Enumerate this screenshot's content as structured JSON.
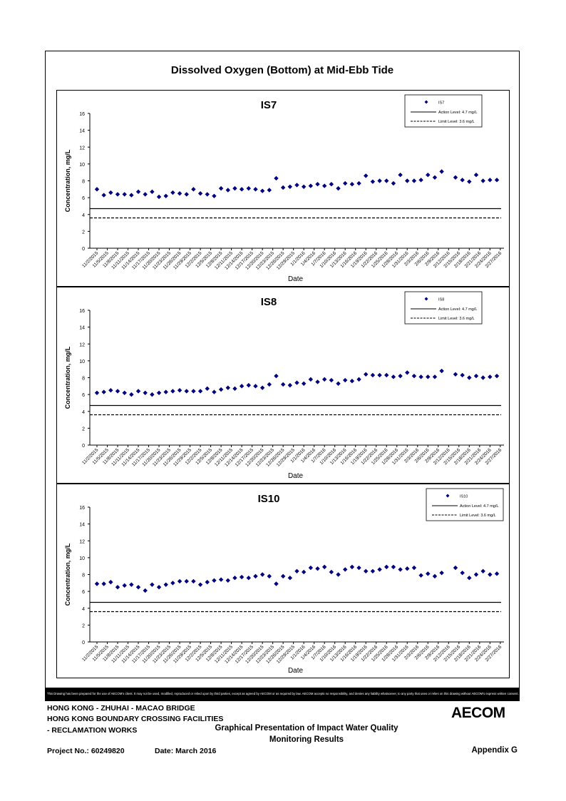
{
  "page_title": "Dissolved Oxygen (Bottom) at Mid-Ebb Tide",
  "disclaimer": "This Drawing has been prepared for the use of AECOM's client. It may not be used, modified, reproduced or relied upon by third parties, except as agreed by AECOM or as required by law. AECOM accepts no responsibility, and denies any liability whatsoever, to any party that uses or relies on this drawing without AECOM's express written consent.",
  "footer": {
    "line1": "HONG KONG - ZHUHAI - MACAO BRIDGE",
    "line2": "HONG KONG BOUNDARY CROSSING FACILITIES",
    "line3": "- RECLAMATION WORKS",
    "graph_title_1": "Graphical Presentation of Impact Water Quality",
    "graph_title_2": "Monitoring Results",
    "project": "Project No.: 60249820",
    "date": "Date: March 2016",
    "appendix": "Appendix G",
    "logo": "AECOM"
  },
  "colors": {
    "marker": "#000080",
    "line": "#000000"
  },
  "chart_data": [
    {
      "type": "scatter",
      "title": "IS7",
      "xlabel": "Date",
      "ylabel": "Concentration, mg/L",
      "ylim": [
        0,
        16
      ],
      "yticks": [
        0,
        2,
        4,
        6,
        8,
        10,
        12,
        14,
        16
      ],
      "xticks": [
        "11/2/2015",
        "11/5/2015",
        "11/8/2015",
        "11/11/2015",
        "11/14/2015",
        "11/17/2015",
        "11/20/2015",
        "11/23/2015",
        "11/26/2015",
        "11/29/2015",
        "12/2/2015",
        "12/5/2015",
        "12/8/2015",
        "12/11/2015",
        "12/14/2015",
        "12/17/2015",
        "12/20/2015",
        "12/23/2015",
        "12/26/2015",
        "12/29/2015",
        "1/1/2016",
        "1/4/2016",
        "1/7/2016",
        "1/10/2016",
        "1/13/2016",
        "1/16/2016",
        "1/19/2016",
        "1/22/2016",
        "1/25/2016",
        "1/28/2016",
        "1/31/2016",
        "2/3/2016",
        "2/6/2016",
        "2/9/2016",
        "2/12/2016",
        "2/15/2016",
        "2/18/2016",
        "2/21/2016",
        "2/24/2016",
        "2/27/2016"
      ],
      "legend": {
        "position": "top-right",
        "series": "IS7",
        "action": "Action Level: 4.7 mg/L",
        "limit": "Limit Level: 3.6 mg/L"
      },
      "action_level": 4.7,
      "limit_level": 3.6,
      "series": [
        {
          "name": "IS7",
          "x": [
            0,
            1,
            2,
            3,
            4,
            5,
            6,
            7,
            8,
            9,
            10,
            11,
            12,
            13,
            14,
            15,
            16,
            17,
            18,
            19,
            20,
            21,
            22,
            23,
            24,
            25,
            26,
            27,
            28,
            29,
            30,
            31,
            32,
            33,
            34,
            35,
            36,
            37,
            38,
            39,
            40,
            41,
            42,
            43,
            44,
            45,
            46,
            47,
            48,
            49,
            50,
            52,
            53,
            54,
            55,
            56,
            57,
            58
          ],
          "y": [
            7.0,
            6.3,
            6.6,
            6.4,
            6.4,
            6.3,
            6.7,
            6.4,
            6.7,
            6.1,
            6.2,
            6.6,
            6.5,
            6.4,
            7.0,
            6.5,
            6.4,
            6.2,
            7.1,
            6.9,
            7.1,
            7.0,
            7.1,
            7.0,
            6.8,
            6.9,
            8.3,
            7.2,
            7.3,
            7.5,
            7.3,
            7.4,
            7.6,
            7.4,
            7.6,
            7.1,
            7.7,
            7.6,
            7.7,
            8.6,
            7.9,
            8.0,
            8.0,
            7.7,
            8.7,
            8.0,
            8.0,
            8.1,
            8.7,
            8.4,
            9.1,
            8.4,
            8.1,
            7.9,
            8.7,
            8.0,
            8.1,
            8.1
          ]
        }
      ]
    },
    {
      "type": "scatter",
      "title": "IS8",
      "xlabel": "Date",
      "ylabel": "Concentration, mg/L",
      "ylim": [
        0,
        16
      ],
      "yticks": [
        0,
        2,
        4,
        6,
        8,
        10,
        12,
        14,
        16
      ],
      "xticks": [
        "11/2/2015",
        "11/5/2015",
        "11/8/2015",
        "11/11/2015",
        "11/14/2015",
        "11/17/2015",
        "11/20/2015",
        "11/23/2015",
        "11/26/2015",
        "11/29/2015",
        "12/2/2015",
        "12/5/2015",
        "12/8/2015",
        "12/11/2015",
        "12/14/2015",
        "12/17/2015",
        "12/20/2015",
        "12/23/2015",
        "12/26/2015",
        "12/29/2015",
        "1/1/2016",
        "1/4/2016",
        "1/7/2016",
        "1/10/2016",
        "1/13/2016",
        "1/16/2016",
        "1/19/2016",
        "1/22/2016",
        "1/25/2016",
        "1/28/2016",
        "1/31/2016",
        "2/3/2016",
        "2/6/2016",
        "2/9/2016",
        "2/12/2016",
        "2/15/2016",
        "2/18/2016",
        "2/21/2016",
        "2/24/2016",
        "2/27/2016"
      ],
      "legend": {
        "position": "top-right",
        "series": "IS8",
        "action": "Action Level: 4.7 mg/L",
        "limit": "Limit Level: 3.6 mg/L"
      },
      "action_level": 4.7,
      "limit_level": 3.6,
      "series": [
        {
          "name": "IS8",
          "x": [
            0,
            1,
            2,
            3,
            4,
            5,
            6,
            7,
            8,
            9,
            10,
            11,
            12,
            13,
            14,
            15,
            16,
            17,
            18,
            19,
            20,
            21,
            22,
            23,
            24,
            25,
            26,
            27,
            28,
            29,
            30,
            31,
            32,
            33,
            34,
            35,
            36,
            37,
            38,
            39,
            40,
            41,
            42,
            43,
            44,
            45,
            46,
            47,
            48,
            49,
            50,
            52,
            53,
            54,
            55,
            56,
            57,
            58
          ],
          "y": [
            6.2,
            6.3,
            6.5,
            6.4,
            6.2,
            6.0,
            6.4,
            6.2,
            6.0,
            6.2,
            6.3,
            6.4,
            6.5,
            6.4,
            6.4,
            6.4,
            6.7,
            6.3,
            6.6,
            6.8,
            6.7,
            7.0,
            7.1,
            7.0,
            6.8,
            7.2,
            8.2,
            7.2,
            7.1,
            7.4,
            7.3,
            7.8,
            7.5,
            7.8,
            7.7,
            7.3,
            7.7,
            7.6,
            7.8,
            8.4,
            8.3,
            8.3,
            8.3,
            8.1,
            8.2,
            8.6,
            8.2,
            8.1,
            8.1,
            8.1,
            8.8,
            8.4,
            8.3,
            8.0,
            8.2,
            8.0,
            8.1,
            8.2
          ]
        }
      ]
    },
    {
      "type": "scatter",
      "title": "IS10",
      "xlabel": "Date",
      "ylabel": "Concentration, mg/L",
      "ylim": [
        0,
        16
      ],
      "yticks": [
        0,
        2,
        4,
        6,
        8,
        10,
        12,
        14,
        16
      ],
      "xticks": [
        "11/2/2015",
        "11/5/2015",
        "11/8/2015",
        "11/11/2015",
        "11/14/2015",
        "11/17/2015",
        "11/20/2015",
        "11/23/2015",
        "11/26/2015",
        "11/29/2015",
        "12/2/2015",
        "12/5/2015",
        "12/8/2015",
        "12/11/2015",
        "12/14/2015",
        "12/17/2015",
        "12/20/2015",
        "12/23/2015",
        "12/26/2015",
        "12/29/2015",
        "1/1/2016",
        "1/4/2016",
        "1/7/2016",
        "1/10/2016",
        "1/13/2016",
        "1/16/2016",
        "1/19/2016",
        "1/22/2016",
        "1/25/2016",
        "1/28/2016",
        "1/31/2016",
        "2/3/2016",
        "2/6/2016",
        "2/9/2016",
        "2/12/2016",
        "2/15/2016",
        "2/18/2016",
        "2/21/2016",
        "2/24/2016",
        "2/27/2016"
      ],
      "legend": {
        "position": "top-right",
        "series": "IS10",
        "action": "Action Level: 4.7 mg/L",
        "limit": "Limit Level: 3.6 mg/L"
      },
      "action_level": 4.7,
      "limit_level": 3.6,
      "series": [
        {
          "name": "IS10",
          "x": [
            0,
            1,
            2,
            3,
            4,
            5,
            6,
            7,
            8,
            9,
            10,
            11,
            12,
            13,
            14,
            15,
            16,
            17,
            18,
            19,
            20,
            21,
            22,
            23,
            24,
            25,
            26,
            27,
            28,
            29,
            30,
            31,
            32,
            33,
            34,
            35,
            36,
            37,
            38,
            39,
            40,
            41,
            42,
            43,
            44,
            45,
            46,
            47,
            48,
            49,
            50,
            52,
            53,
            54,
            55,
            56,
            57,
            58
          ],
          "y": [
            6.9,
            6.9,
            7.1,
            6.5,
            6.7,
            6.8,
            6.5,
            6.1,
            6.8,
            6.5,
            6.8,
            7.0,
            7.2,
            7.2,
            7.2,
            6.8,
            7.1,
            7.3,
            7.4,
            7.3,
            7.6,
            7.7,
            7.6,
            7.8,
            8.0,
            7.8,
            6.9,
            7.8,
            7.6,
            8.4,
            8.3,
            8.8,
            8.7,
            8.9,
            8.3,
            8.0,
            8.6,
            8.9,
            8.8,
            8.4,
            8.4,
            8.6,
            8.9,
            8.9,
            8.6,
            8.7,
            8.8,
            7.9,
            8.1,
            7.8,
            8.2,
            8.8,
            8.2,
            7.6,
            8.0,
            8.4,
            8.0,
            8.1
          ]
        }
      ]
    }
  ]
}
